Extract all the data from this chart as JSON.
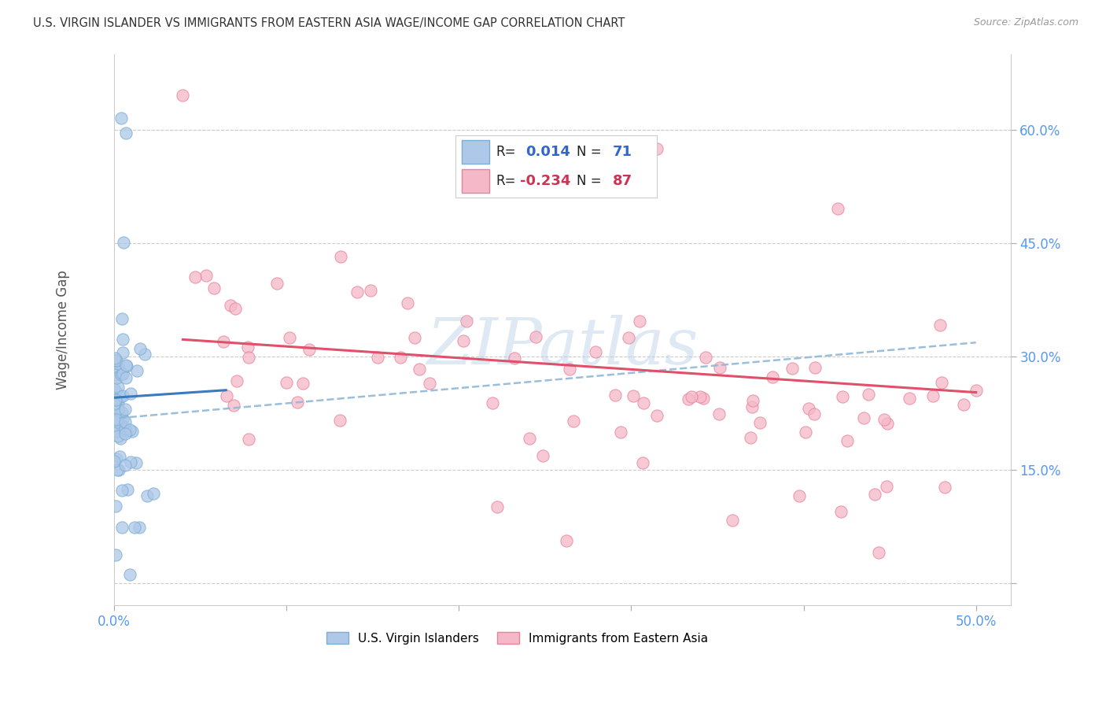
{
  "title": "U.S. VIRGIN ISLANDER VS IMMIGRANTS FROM EASTERN ASIA WAGE/INCOME GAP CORRELATION CHART",
  "source": "Source: ZipAtlas.com",
  "ylabel": "Wage/Income Gap",
  "xlim": [
    0.0,
    0.52
  ],
  "ylim": [
    -0.03,
    0.7
  ],
  "x_ticks": [
    0.0,
    0.1,
    0.2,
    0.3,
    0.4,
    0.5
  ],
  "y_ticks": [
    0.0,
    0.15,
    0.3,
    0.45,
    0.6
  ],
  "blue_R": "0.014",
  "blue_N": "71",
  "pink_R": "-0.234",
  "pink_N": "87",
  "blue_fill_color": "#adc8e8",
  "pink_fill_color": "#f5b8c8",
  "blue_edge_color": "#7aaed4",
  "pink_edge_color": "#e8849a",
  "blue_reg_color": "#3a7abf",
  "pink_reg_color": "#e0506a",
  "blue_dash_color": "#90b8d8",
  "watermark": "ZIPatlas",
  "grid_color": "#cccccc",
  "background_color": "#ffffff",
  "tick_color": "#5599ee",
  "title_color": "#333333",
  "source_color": "#999999",
  "ylabel_color": "#555555"
}
